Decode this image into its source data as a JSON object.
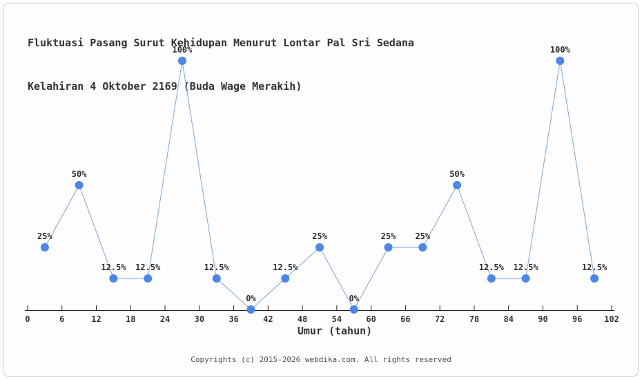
{
  "title": {
    "line1": "Fluktuasi Pasang Surut Kehidupan Menurut Lontar Pal Sri Sedana",
    "line2": "Kelahiran 4 Oktober 2169 (Buda Wage Merakih)"
  },
  "chart_data": {
    "type": "line",
    "title": "Fluktuasi Pasang Surut Kehidupan Menurut Lontar Pal Sri Sedana Kelahiran 4 Oktober 2169 (Buda Wage Merakih)",
    "x": [
      3,
      9,
      15,
      21,
      27,
      33,
      39,
      45,
      51,
      57,
      63,
      69,
      75,
      81,
      87,
      93,
      99
    ],
    "values": [
      25,
      50,
      12.5,
      12.5,
      100,
      12.5,
      0,
      12.5,
      25,
      0,
      25,
      25,
      50,
      12.5,
      12.5,
      100,
      12.5
    ],
    "point_labels": [
      "25%",
      "50%",
      "12.5%",
      "12.5%",
      "100%",
      "12.5%",
      "0%",
      "12.5%",
      "25%",
      "0%",
      "25%",
      "25%",
      "50%",
      "12.5%",
      "12.5%",
      "100%",
      "12.5%"
    ],
    "x_ticks": [
      0,
      6,
      12,
      18,
      24,
      30,
      36,
      42,
      48,
      54,
      60,
      66,
      72,
      78,
      84,
      90,
      96,
      102
    ],
    "xlabel": "Umur (tahun)",
    "ylabel": "",
    "xlim": [
      0,
      102
    ],
    "ylim": [
      0,
      100
    ],
    "grid": false,
    "legend": false,
    "marker_color": "#4a86ec",
    "line_color": "#76a3f2",
    "axis_color": "#1f1f1f"
  },
  "footer": {
    "copyright": "Copyrights (c) 2015-2026 webdika.com. All rights reserved"
  }
}
